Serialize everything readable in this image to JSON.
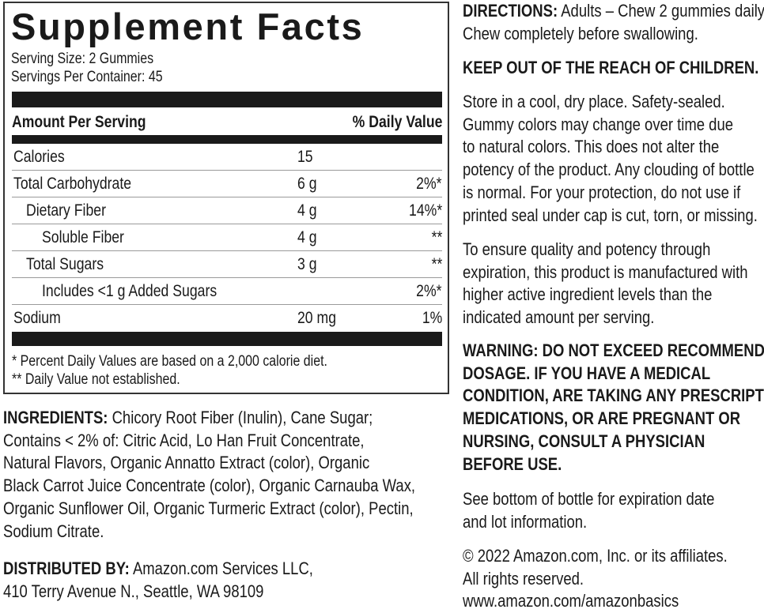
{
  "facts": {
    "title": "Supplement Facts",
    "serving_size": "Serving Size: 2 Gummies",
    "servings_per_container": "Servings Per Container: 45",
    "header_left": "Amount Per Serving",
    "header_right": "% Daily Value",
    "rows": [
      {
        "name": "Calories",
        "amount": "15",
        "dv": ""
      },
      {
        "name": "Total Carbohydrate",
        "amount": "6 g",
        "dv": "2%*"
      },
      {
        "name": "Dietary Fiber",
        "amount": "4 g",
        "dv": "14%*"
      },
      {
        "name": "Soluble Fiber",
        "amount": "4 g",
        "dv": "**"
      },
      {
        "name": "Total Sugars",
        "amount": "3 g",
        "dv": "**"
      },
      {
        "name": "Includes <1 g Added Sugars",
        "amount": "",
        "dv": "2%*"
      },
      {
        "name": "Sodium",
        "amount": "20 mg",
        "dv": "1%"
      }
    ],
    "footnote1": "* Percent Daily Values are based on a 2,000 calorie diet.",
    "footnote2": "** Daily Value not established."
  },
  "ingredients": {
    "label": "INGREDIENTS:",
    "lines": [
      " Chicory Root Fiber (Inulin), Cane Sugar;",
      "Contains < 2% of: Citric Acid, Lo Han Fruit Concentrate,",
      "Natural Flavors, Organic Annatto Extract (color), Organic",
      "Black Carrot Juice Concentrate (color), Organic Carnauba Wax,",
      "Organic Sunflower Oil, Organic Turmeric Extract (color), Pectin,",
      "Sodium Citrate."
    ]
  },
  "distributor": {
    "label": "DISTRIBUTED BY:",
    "line1": " Amazon.com Services LLC,",
    "line2": "410 Terry Avenue N., Seattle, WA 98109"
  },
  "directions": {
    "label": "DIRECTIONS:",
    "line1": " Adults – Chew 2 gummies daily.",
    "line2": "Chew completely before swallowing."
  },
  "keep_out": "KEEP OUT OF THE REACH OF CHILDREN.",
  "storage": [
    "Store in a cool, dry place. Safety-sealed.",
    "Gummy colors may change over time due",
    "to natural colors. This does not alter the",
    "potency of the product. Any clouding of bottle",
    "is normal. For your protection, do not use if",
    "printed seal under cap is cut, torn, or missing."
  ],
  "quality": [
    "To ensure quality and potency through",
    "expiration, this product is manufactured with",
    "higher active ingredient levels than the",
    "indicated amount per serving."
  ],
  "warning": [
    "WARNING:  DO NOT EXCEED RECOMMENDED",
    "DOSAGE. IF YOU HAVE A MEDICAL",
    "CONDITION, ARE TAKING ANY PRESCRIPTION",
    "MEDICATIONS, OR ARE PREGNANT OR",
    "NURSING, CONSULT A PHYSICIAN",
    "BEFORE USE."
  ],
  "expiration": [
    "See bottom of bottle for expiration date",
    "and lot information."
  ],
  "copyright": [
    "© 2022 Amazon.com, Inc. or its affiliates.",
    "All rights reserved.",
    "www.amazon.com/amazonbasics"
  ]
}
